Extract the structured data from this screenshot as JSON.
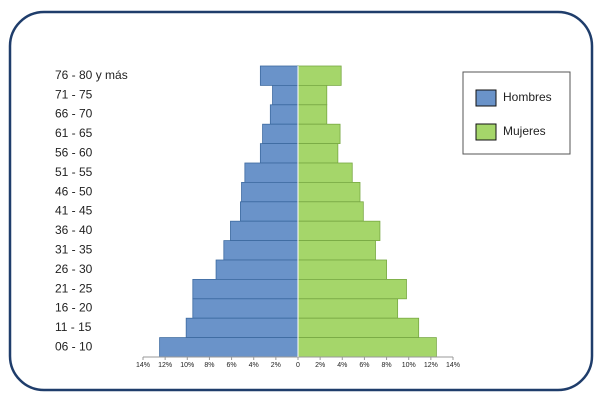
{
  "chart_data": {
    "type": "pyramid",
    "categories": [
      "76 - 80 y más",
      "71 - 75",
      "66 - 70",
      "61 - 65",
      "56 - 60",
      "51 - 55",
      "46 - 50",
      "41 - 45",
      "36 - 40",
      "31 - 35",
      "26 - 30",
      "21 - 25",
      "16 - 20",
      "11 - 15",
      "06 - 10"
    ],
    "series": [
      {
        "name": "Hombres",
        "color": "#6a93c9",
        "side": "left",
        "values": [
          3.4,
          2.3,
          2.5,
          3.2,
          3.4,
          4.8,
          5.1,
          5.2,
          6.1,
          6.7,
          7.4,
          9.5,
          9.5,
          10.1,
          12.5
        ]
      },
      {
        "name": "Mujeres",
        "color": "#a5d66a",
        "side": "right",
        "values": [
          3.9,
          2.6,
          2.6,
          3.8,
          3.6,
          4.9,
          5.6,
          5.9,
          7.4,
          7.0,
          8.0,
          9.8,
          9.0,
          10.9,
          12.5
        ]
      }
    ],
    "xlim": [
      0,
      14
    ],
    "xticks": [
      0,
      {
        "value": 2,
        "label": "2%"
      },
      {
        "value": 4,
        "label": "4%"
      },
      {
        "value": 6,
        "label": "6%"
      },
      {
        "value": 8,
        "label": "8%"
      },
      {
        "value": 10,
        "label": "10%"
      },
      {
        "value": 12,
        "label": "12%"
      },
      {
        "value": 14,
        "label": "14%"
      }
    ],
    "legend": "right"
  }
}
